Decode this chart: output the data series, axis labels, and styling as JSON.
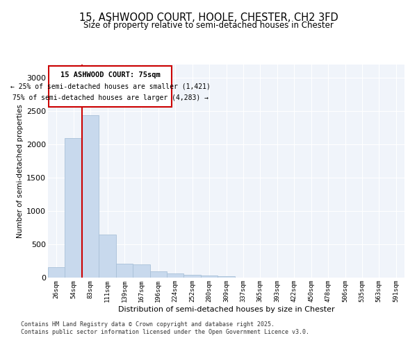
{
  "title_line1": "15, ASHWOOD COURT, HOOLE, CHESTER, CH2 3FD",
  "title_line2": "Size of property relative to semi-detached houses in Chester",
  "xlabel": "Distribution of semi-detached houses by size in Chester",
  "ylabel": "Number of semi-detached properties",
  "bar_color": "#c8d9ed",
  "bar_edge_color": "#a8c0d8",
  "grid_color": "#d0d8e8",
  "annotation_box_color": "#cc0000",
  "vline_color": "#cc0000",
  "footer_line1": "Contains HM Land Registry data © Crown copyright and database right 2025.",
  "footer_line2": "Contains public sector information licensed under the Open Government Licence v3.0.",
  "property_label": "15 ASHWOOD COURT: 75sqm",
  "pct_smaller_label": "← 25% of semi-detached houses are smaller (1,421)",
  "pct_larger_label": "75% of semi-detached houses are larger (4,283) →",
  "categories": [
    "26sqm",
    "54sqm",
    "83sqm",
    "111sqm",
    "139sqm",
    "167sqm",
    "196sqm",
    "224sqm",
    "252sqm",
    "280sqm",
    "309sqm",
    "337sqm",
    "365sqm",
    "393sqm",
    "422sqm",
    "450sqm",
    "478sqm",
    "506sqm",
    "535sqm",
    "563sqm",
    "591sqm"
  ],
  "values": [
    160,
    2090,
    2430,
    650,
    205,
    200,
    90,
    65,
    40,
    30,
    20,
    0,
    0,
    0,
    0,
    0,
    0,
    0,
    0,
    0,
    0
  ],
  "ylim": [
    0,
    3200
  ],
  "yticks": [
    0,
    500,
    1000,
    1500,
    2000,
    2500,
    3000
  ],
  "vline_x": 1.5,
  "bg_color": "#f0f4fa"
}
